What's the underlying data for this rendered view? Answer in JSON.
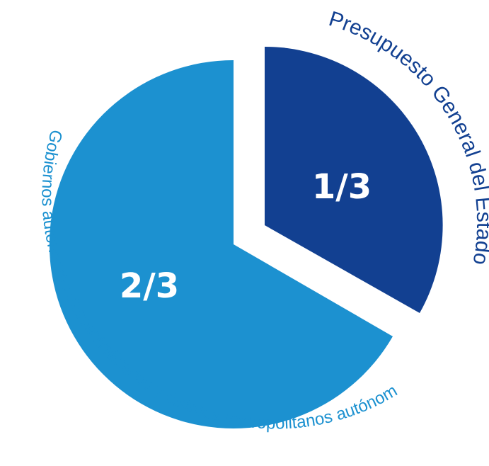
{
  "chart_data": {
    "type": "pie",
    "title": "",
    "slices": [
      {
        "label": "Presupuesto General del Estado",
        "value_label": "1/3",
        "value": 0.3333,
        "color": "#124091",
        "exploded": true
      },
      {
        "label": "Gobiernos autónomos descentralizados y distritos metropolitanos autónomos",
        "value_label": "2/3",
        "value": 0.6667,
        "color": "#1c91d0",
        "exploded": false
      }
    ],
    "legend": "none"
  }
}
